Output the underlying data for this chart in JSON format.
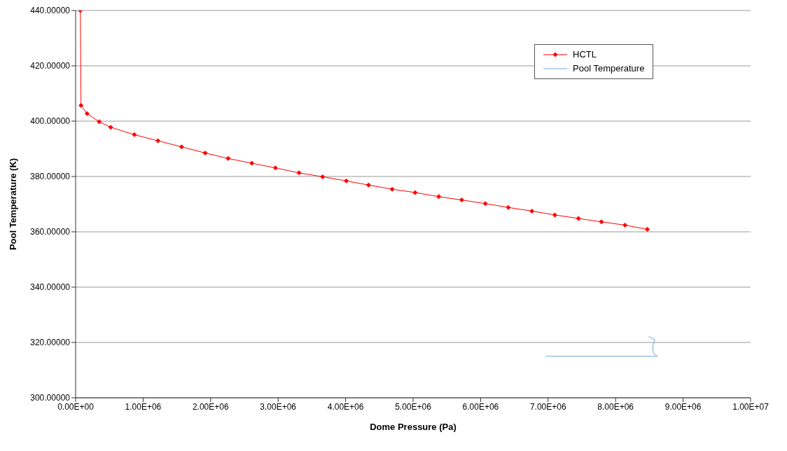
{
  "chart_data": {
    "type": "line",
    "xlabel": "Dome Pressure (Pa)",
    "ylabel": "Pool Temperature (K)",
    "xlim": [
      0,
      10000000
    ],
    "ylim": [
      300,
      440
    ],
    "xticks": [
      {
        "value": 0,
        "label": "0.00E+00"
      },
      {
        "value": 1000000,
        "label": "1.00E+06"
      },
      {
        "value": 2000000,
        "label": "2.00E+06"
      },
      {
        "value": 3000000,
        "label": "3.00E+06"
      },
      {
        "value": 4000000,
        "label": "4.00E+06"
      },
      {
        "value": 5000000,
        "label": "5.00E+06"
      },
      {
        "value": 6000000,
        "label": "6.00E+06"
      },
      {
        "value": 7000000,
        "label": "7.00E+06"
      },
      {
        "value": 8000000,
        "label": "8.00E+06"
      },
      {
        "value": 9000000,
        "label": "9.00E+06"
      },
      {
        "value": 10000000,
        "label": "1.00E+07"
      }
    ],
    "yticks": [
      {
        "value": 300,
        "label": "300.00000"
      },
      {
        "value": 320,
        "label": "320.00000"
      },
      {
        "value": 340,
        "label": "340.00000"
      },
      {
        "value": 360,
        "label": "360.00000"
      },
      {
        "value": 380,
        "label": "380.00000"
      },
      {
        "value": 400,
        "label": "400.00000"
      },
      {
        "value": 420,
        "label": "420.00000"
      },
      {
        "value": 440,
        "label": "440.00000"
      }
    ],
    "grid": "y",
    "legend": "top right",
    "series": [
      {
        "name": "HCTL",
        "color": "#ff0000",
        "marker": "diamond",
        "x": [
          70000,
          80000,
          170000,
          350000,
          520000,
          870000,
          1220000,
          1570000,
          1920000,
          2260000,
          2610000,
          2960000,
          3310000,
          3660000,
          4010000,
          4340000,
          4690000,
          5030000,
          5380000,
          5720000,
          6070000,
          6410000,
          6760000,
          7100000,
          7450000,
          7790000,
          8140000,
          8470000
        ],
        "values": [
          440,
          405.7,
          402.7,
          399.8,
          397.8,
          395.1,
          392.9,
          390.7,
          388.5,
          386.5,
          384.8,
          383.1,
          381.3,
          379.9,
          378.4,
          376.9,
          375.4,
          374.2,
          372.7,
          371.5,
          370.2,
          368.8,
          367.5,
          366.1,
          364.8,
          363.6,
          362.4,
          360.9
        ]
      },
      {
        "name": "Pool Temperature",
        "color": "#6fa8dc",
        "marker": "none",
        "x": [
          8490000,
          8580000,
          8550000,
          8560000,
          8620000,
          6960000
        ],
        "values": [
          322.2,
          320.9,
          318.7,
          316,
          315,
          315
        ]
      }
    ]
  }
}
